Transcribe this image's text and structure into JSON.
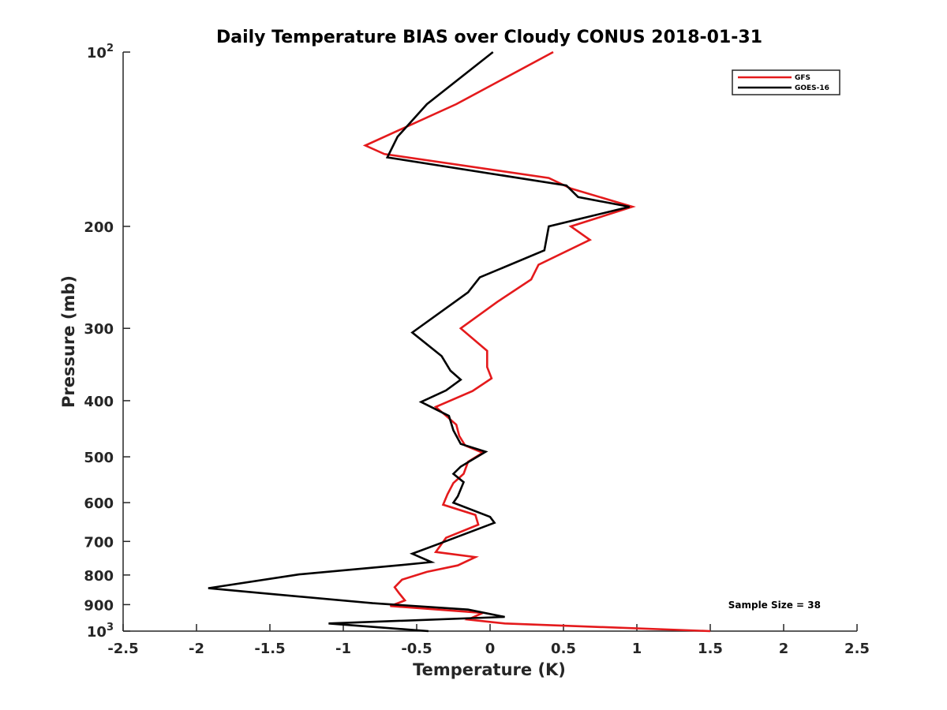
{
  "chart_data": {
    "type": "line",
    "title": "Daily Temperature BIAS over Cloudy CONUS 2018-01-31",
    "xlabel": "Temperature (K)",
    "ylabel": "Pressure (mb)",
    "xlim": [
      -2.5,
      2.5
    ],
    "ylim": [
      100,
      1000
    ],
    "yscale": "log",
    "y_reversed": true,
    "x_ticks": [
      -2.5,
      -2,
      -1.5,
      -1,
      -0.5,
      0,
      0.5,
      1,
      1.5,
      2,
      2.5
    ],
    "x_tick_labels": [
      "-2.5",
      "-2",
      "-1.5",
      "-1",
      "-0.5",
      "0",
      "0.5",
      "1",
      "1.5",
      "2",
      "2.5"
    ],
    "y_ticks": [
      100,
      200,
      300,
      400,
      500,
      600,
      700,
      800,
      900,
      1000
    ],
    "y_tick_labels": [
      {
        "text": "10",
        "sup": "2"
      },
      {
        "text": "200"
      },
      {
        "text": "300"
      },
      {
        "text": "400"
      },
      {
        "text": "500"
      },
      {
        "text": "600"
      },
      {
        "text": "700"
      },
      {
        "text": "800"
      },
      {
        "text": "900"
      },
      {
        "text": "10",
        "sup": "3"
      }
    ],
    "legend": {
      "position": "top-right"
    },
    "annotation": "Sample Size = 38",
    "series": [
      {
        "name": "GFS",
        "color": "#e41a1c",
        "points": [
          [
            0.43,
            100
          ],
          [
            -0.23,
            123
          ],
          [
            -0.85,
            145
          ],
          [
            -0.72,
            150
          ],
          [
            0.4,
            165
          ],
          [
            0.55,
            172
          ],
          [
            0.97,
            185
          ],
          [
            0.55,
            200
          ],
          [
            0.68,
            211
          ],
          [
            0.33,
            233
          ],
          [
            0.28,
            247
          ],
          [
            0.05,
            270
          ],
          [
            -0.2,
            300
          ],
          [
            -0.02,
            328
          ],
          [
            -0.02,
            350
          ],
          [
            0.01,
            366
          ],
          [
            -0.12,
            385
          ],
          [
            -0.37,
            410
          ],
          [
            -0.23,
            440
          ],
          [
            -0.21,
            460
          ],
          [
            -0.17,
            478
          ],
          [
            -0.05,
            492
          ],
          [
            -0.15,
            510
          ],
          [
            -0.18,
            535
          ],
          [
            -0.25,
            555
          ],
          [
            -0.29,
            580
          ],
          [
            -0.32,
            605
          ],
          [
            -0.1,
            630
          ],
          [
            -0.08,
            655
          ],
          [
            -0.3,
            690
          ],
          [
            -0.37,
            730
          ],
          [
            -0.1,
            745
          ],
          [
            -0.22,
            770
          ],
          [
            -0.43,
            790
          ],
          [
            -0.6,
            815
          ],
          [
            -0.65,
            840
          ],
          [
            -0.62,
            860
          ],
          [
            -0.58,
            885
          ],
          [
            -0.68,
            905
          ],
          [
            -0.05,
            930
          ],
          [
            -0.15,
            955
          ],
          [
            0.1,
            970
          ],
          [
            1.5,
            1000
          ]
        ]
      },
      {
        "name": "GOES-16",
        "color": "#000000",
        "points": [
          [
            0.02,
            100
          ],
          [
            -0.43,
            123
          ],
          [
            -0.63,
            140
          ],
          [
            -0.7,
            152
          ],
          [
            0.52,
            170
          ],
          [
            0.6,
            178
          ],
          [
            0.95,
            185
          ],
          [
            0.4,
            200
          ],
          [
            0.37,
            220
          ],
          [
            -0.07,
            245
          ],
          [
            -0.15,
            260
          ],
          [
            -0.53,
            305
          ],
          [
            -0.33,
            335
          ],
          [
            -0.27,
            355
          ],
          [
            -0.2,
            368
          ],
          [
            -0.3,
            384
          ],
          [
            -0.47,
            402
          ],
          [
            -0.28,
            425
          ],
          [
            -0.25,
            450
          ],
          [
            -0.2,
            475
          ],
          [
            -0.03,
            490
          ],
          [
            -0.2,
            520
          ],
          [
            -0.25,
            535
          ],
          [
            -0.18,
            553
          ],
          [
            -0.22,
            585
          ],
          [
            -0.25,
            600
          ],
          [
            0.0,
            635
          ],
          [
            0.03,
            650
          ],
          [
            -0.37,
            710
          ],
          [
            -0.53,
            735
          ],
          [
            -0.4,
            760
          ],
          [
            -0.63,
            770
          ],
          [
            -1.3,
            798
          ],
          [
            -1.92,
            843
          ],
          [
            -1.55,
            860
          ],
          [
            -0.8,
            895
          ],
          [
            -0.15,
            918
          ],
          [
            0.1,
            945
          ],
          [
            -1.1,
            970
          ],
          [
            -0.42,
            1000
          ]
        ]
      }
    ]
  }
}
